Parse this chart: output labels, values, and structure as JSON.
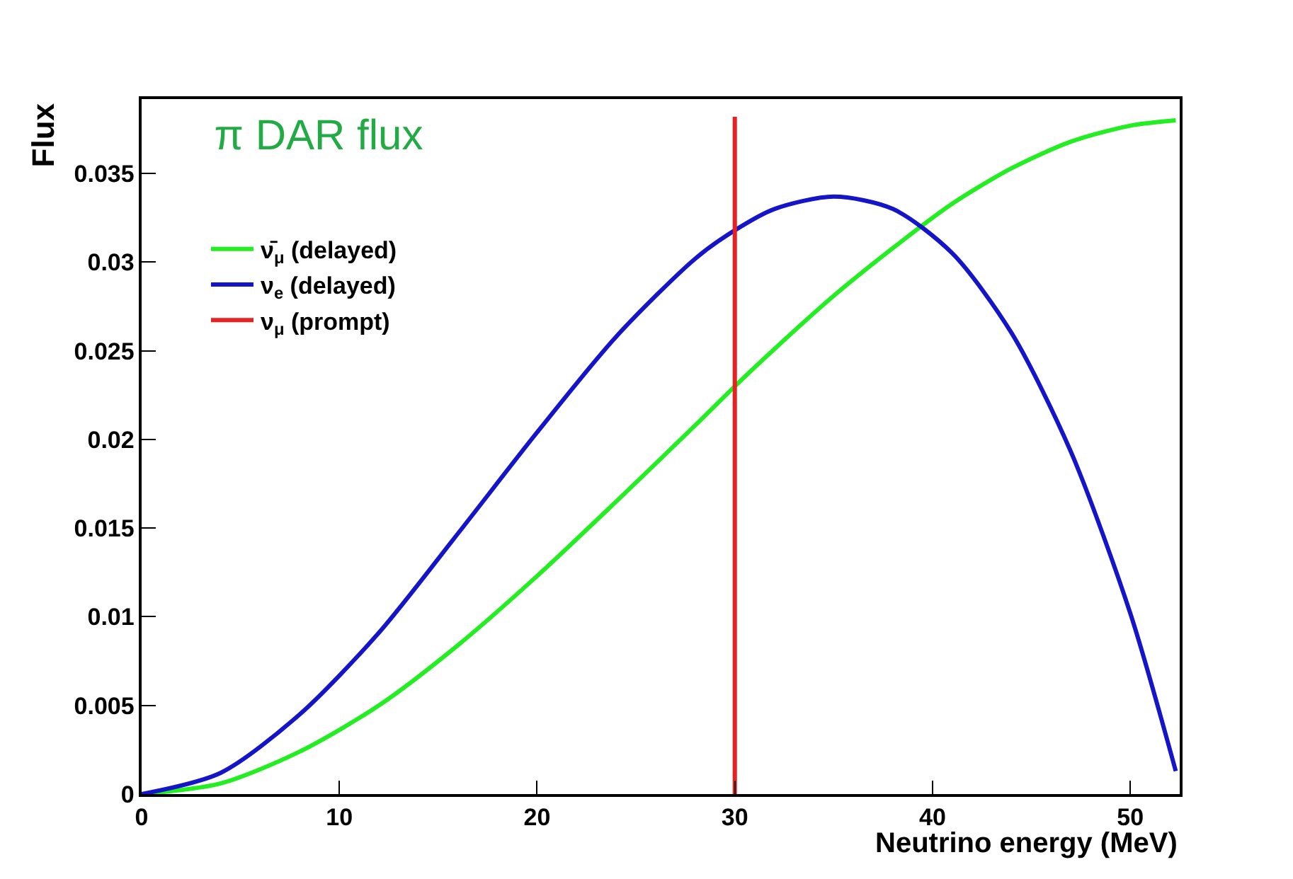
{
  "chart_data": {
    "type": "line",
    "title": "π DAR flux",
    "xlabel": "Neutrino energy (MeV)",
    "ylabel": "Flux",
    "xlim": [
      0,
      52.5
    ],
    "xticks": [
      0,
      10,
      20,
      30,
      40,
      50
    ],
    "ylim": [
      0,
      0.0392
    ],
    "yticks": [
      0,
      0.005,
      0.01,
      0.015,
      0.02,
      0.025,
      0.03,
      0.035
    ],
    "legend": "top left",
    "marker": "none",
    "line_style": "solid",
    "series": [
      {
        "name": "ν̄$_{μ}$ (delayed)",
        "color": "#22ee22",
        "x": [
          0,
          4,
          8,
          12,
          16,
          20,
          24,
          28,
          30,
          32,
          35,
          38,
          41,
          44,
          47,
          50,
          52.3
        ],
        "values": [
          0,
          0.0006,
          0.0024,
          0.005,
          0.0084,
          0.0123,
          0.0165,
          0.0208,
          0.023,
          0.0251,
          0.0281,
          0.0308,
          0.0333,
          0.0353,
          0.0368,
          0.0377,
          0.038
        ]
      },
      {
        "name": "ν$_{e}$ (delayed)",
        "color": "#1414c8",
        "x": [
          0,
          4,
          8,
          12,
          16,
          20,
          24,
          28,
          30,
          32,
          35,
          38,
          41,
          44,
          47,
          50,
          52.3
        ],
        "values": [
          0,
          0.0012,
          0.0045,
          0.0091,
          0.0147,
          0.0204,
          0.0258,
          0.0302,
          0.0318,
          0.033,
          0.0337,
          0.033,
          0.0305,
          0.026,
          0.0193,
          0.0102,
          0.0013
        ]
      },
      {
        "name": "ν$_{μ}$ (prompt)",
        "color": "#e82020",
        "x": [
          30,
          30
        ],
        "values": [
          0,
          0.0382
        ]
      }
    ]
  }
}
